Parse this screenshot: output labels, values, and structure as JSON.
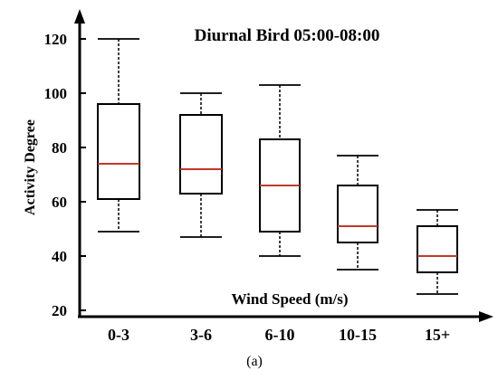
{
  "chart_data": {
    "type": "boxplot",
    "title": "Diurnal Bird 05:00-08:00",
    "xlabel": "Wind Speed (m/s)",
    "ylabel": "Activity Degree",
    "caption": "(a)",
    "ylim": [
      20,
      130
    ],
    "yticks": [
      20,
      40,
      60,
      80,
      100,
      120
    ],
    "grid": false,
    "categories": [
      "0-3",
      "3-6",
      "6-10",
      "10-15",
      "15+"
    ],
    "boxes": [
      {
        "category": "0-3",
        "min": 49,
        "q1": 61,
        "median": 74,
        "q3": 96,
        "max": 120
      },
      {
        "category": "3-6",
        "min": 47,
        "q1": 63,
        "median": 72,
        "q3": 92,
        "max": 100
      },
      {
        "category": "6-10",
        "min": 40,
        "q1": 49,
        "median": 66,
        "q3": 83,
        "max": 103
      },
      {
        "category": "10-15",
        "min": 35,
        "q1": 45,
        "median": 51,
        "q3": 66,
        "max": 77
      },
      {
        "category": "15+",
        "min": 26,
        "q1": 34,
        "median": 40,
        "q3": 51,
        "max": 57
      }
    ],
    "colors": {
      "axis": "#000000",
      "box": "#000000",
      "median": "#c0392b"
    }
  }
}
